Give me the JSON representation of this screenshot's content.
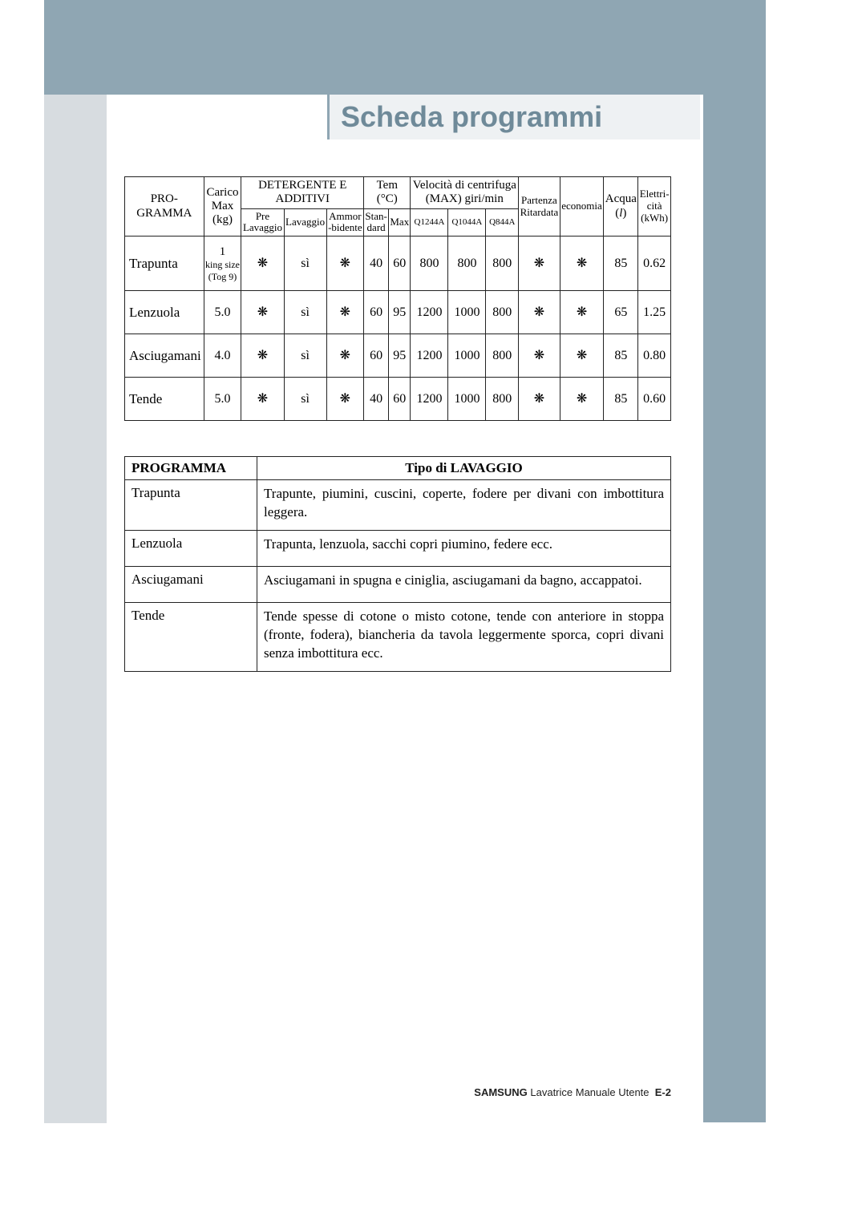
{
  "page_title": "Scheda programmi",
  "colors": {
    "band": "#8fa6b3",
    "title_bg": "#eef1f3",
    "left_accent": "#d7dce0",
    "text": "#222222",
    "title_text": "#6f8a99"
  },
  "main_table": {
    "headers": {
      "programma": "PRO-\nGRAMMA",
      "carico": "Carico\nMax\n(kg)",
      "detergente_group": "DETERGENTE E\nADDITIVI",
      "pre_lavaggio": "Pre\nLavaggio",
      "lavaggio": "Lavaggio",
      "ammor_bidente": "Ammor\n-bidente",
      "temp_group": "Tem\n(°C)",
      "standard": "Stan-\ndard",
      "max": "Max",
      "spin_group": "Velocità di centrifuga\n(MAX) giri/min",
      "q1244a": "Q1244A",
      "q1044a": "Q1044A",
      "q844a": "Q844A",
      "partenza": "Partenza\nRitardata",
      "economia": "economia",
      "acqua": "Acqua\n(l)",
      "elettricita": "Elettri-\ncità\n(kWh)"
    },
    "rows": [
      {
        "name": "Trapunta",
        "load": {
          "top": "1",
          "mid": "king size",
          "bot": "(Tog 9)"
        },
        "pre": "❋",
        "lav": "sì",
        "amm": "❋",
        "std": "40",
        "tmax": "60",
        "s1": "800",
        "s2": "800",
        "s3": "800",
        "pr": "❋",
        "eco": "❋",
        "acqua": "85",
        "kwh": "0.62"
      },
      {
        "name": "Lenzuola",
        "load_simple": "5.0",
        "pre": "❋",
        "lav": "sì",
        "amm": "❋",
        "std": "60",
        "tmax": "95",
        "s1": "1200",
        "s2": "1000",
        "s3": "800",
        "pr": "❋",
        "eco": "❋",
        "acqua": "65",
        "kwh": "1.25"
      },
      {
        "name": "Asciugamani",
        "load_simple": "4.0",
        "pre": "❋",
        "lav": "sì",
        "amm": "❋",
        "std": "60",
        "tmax": "95",
        "s1": "1200",
        "s2": "1000",
        "s3": "800",
        "pr": "❋",
        "eco": "❋",
        "acqua": "85",
        "kwh": "0.80"
      },
      {
        "name": "Tende",
        "load_simple": "5.0",
        "pre": "❋",
        "lav": "sì",
        "amm": "❋",
        "std": "40",
        "tmax": "60",
        "s1": "1200",
        "s2": "1000",
        "s3": "800",
        "pr": "❋",
        "eco": "❋",
        "acqua": "85",
        "kwh": "0.60"
      }
    ]
  },
  "desc_table": {
    "header_prog": "PROGRAMMA",
    "header_type": "Tipo di LAVAGGIO",
    "rows": [
      {
        "prog": "Trapunta",
        "desc": "Trapunte, piumini, cuscini, coperte, fodere per divani con imbottitura leggera."
      },
      {
        "prog": "Lenzuola",
        "desc": "Trapunta, lenzuola, sacchi copri piumino, federe ecc."
      },
      {
        "prog": "Asciugamani",
        "desc": "Asciugamani in spugna e ciniglia, asciugamani da bagno, accappatoi."
      },
      {
        "prog": "Tende",
        "desc": "Tende spesse di cotone o misto cotone, tende con anteriore in stoppa (fronte, fodera), biancheria da tavola leggermente sporca, copri divani senza imbottitura ecc."
      }
    ]
  },
  "footer": {
    "brand": "SAMSUNG",
    "text": "Lavatrice Manuale Utente",
    "page": "E-2"
  },
  "italic_l": "l"
}
